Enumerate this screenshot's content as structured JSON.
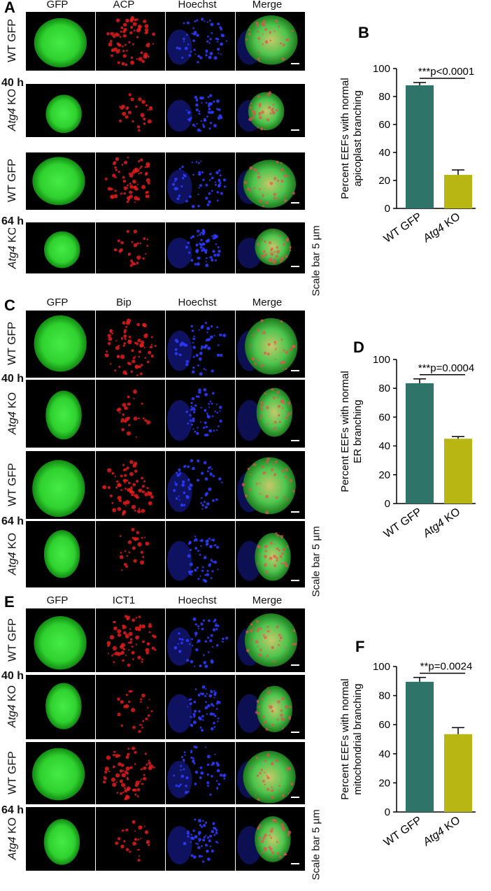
{
  "panels": [
    {
      "letter": "A",
      "columns": [
        "GFP",
        "ACP",
        "Hoechst",
        "Merge"
      ],
      "rows": [
        {
          "prefix": "",
          "gene": "WT GFP"
        },
        {
          "gene": "Atg4",
          "suffix": " KO"
        },
        {
          "prefix": "",
          "gene": "WT GFP"
        },
        {
          "gene": "Atg4",
          "suffix": " KO"
        }
      ],
      "times": [
        "40 h",
        "64 h"
      ],
      "scale": "Scale bar 5 µm"
    },
    {
      "letter": "C",
      "columns": [
        "GFP",
        "Bip",
        "Hoechst",
        "Merge"
      ],
      "times": [
        "40 h",
        "64 h"
      ],
      "scale": "Scale bar 5 µm"
    },
    {
      "letter": "E",
      "columns": [
        "GFP",
        "ICT1",
        "Hoechst",
        "Merge"
      ],
      "times": [
        "40 h",
        "64 h"
      ],
      "scale": "Scale bar 5 µm"
    }
  ],
  "row_labels": {
    "wt": "WT GFP",
    "ko_gene": "Atg4",
    "ko_suffix": " KO"
  },
  "colors": {
    "gfp": "#2fd12f",
    "red": "#e31b1b",
    "blue": "#2a3bff",
    "bar_wt": "#2e7468",
    "bar_ko": "#b8b612"
  },
  "chart_data": [
    {
      "letter": "B",
      "type": "bar",
      "categories": [
        "WT GFP",
        "Atg4 KO"
      ],
      "values": [
        88,
        24
      ],
      "errors": [
        2,
        3.5
      ],
      "ylabel_lines": [
        "Percent  EEFs with normal",
        "apicoplast branching"
      ],
      "ylim": [
        0,
        100
      ],
      "yticks": [
        0,
        20,
        40,
        60,
        80,
        100
      ],
      "annotation": "***p<0.0001"
    },
    {
      "letter": "D",
      "type": "bar",
      "categories": [
        "WT GFP",
        "Atg4 KO"
      ],
      "values": [
        83.5,
        45
      ],
      "errors": [
        3,
        1.5
      ],
      "ylabel_lines": [
        "Percent  EEFs with normal",
        "ER branching"
      ],
      "ylim": [
        0,
        100
      ],
      "yticks": [
        0,
        20,
        40,
        60,
        80,
        100
      ],
      "annotation": "***p=0.0004"
    },
    {
      "letter": "F",
      "type": "bar",
      "categories": [
        "WT GFP",
        "Atg4 KO"
      ],
      "values": [
        89.5,
        53.5
      ],
      "errors": [
        3,
        4.5
      ],
      "ylabel_lines": [
        "Percent EEFs with normal",
        "mitochondrial branching"
      ],
      "ylim": [
        0,
        100
      ],
      "yticks": [
        0,
        20,
        40,
        60,
        80,
        100
      ],
      "annotation": "**p=0.0024"
    }
  ]
}
